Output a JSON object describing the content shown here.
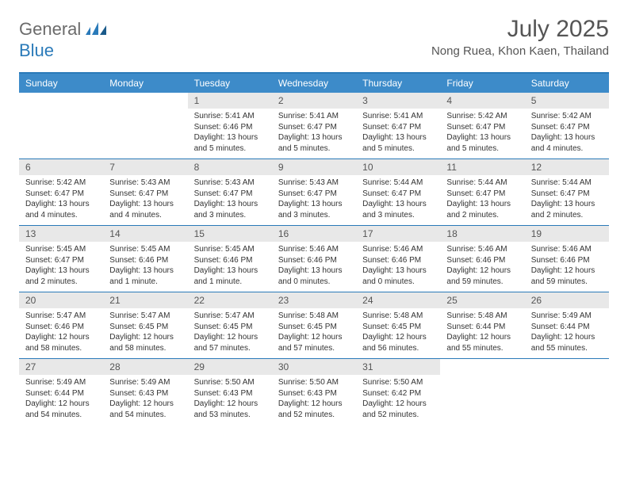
{
  "brand": {
    "text1": "General",
    "text2": "Blue",
    "logo_color": "#2a7ab9",
    "text_color": "#6b6b6b"
  },
  "title": "July 2025",
  "location": "Nong Ruea, Khon Kaen, Thailand",
  "colors": {
    "header_bg": "#3d8bc9",
    "border": "#2a7ab9",
    "daynum_bg": "#e8e8e8",
    "text": "#333333"
  },
  "daynames": [
    "Sunday",
    "Monday",
    "Tuesday",
    "Wednesday",
    "Thursday",
    "Friday",
    "Saturday"
  ],
  "weeks": [
    [
      null,
      null,
      {
        "n": "1",
        "sr": "5:41 AM",
        "ss": "6:46 PM",
        "dl": "13 hours and 5 minutes."
      },
      {
        "n": "2",
        "sr": "5:41 AM",
        "ss": "6:47 PM",
        "dl": "13 hours and 5 minutes."
      },
      {
        "n": "3",
        "sr": "5:41 AM",
        "ss": "6:47 PM",
        "dl": "13 hours and 5 minutes."
      },
      {
        "n": "4",
        "sr": "5:42 AM",
        "ss": "6:47 PM",
        "dl": "13 hours and 5 minutes."
      },
      {
        "n": "5",
        "sr": "5:42 AM",
        "ss": "6:47 PM",
        "dl": "13 hours and 4 minutes."
      }
    ],
    [
      {
        "n": "6",
        "sr": "5:42 AM",
        "ss": "6:47 PM",
        "dl": "13 hours and 4 minutes."
      },
      {
        "n": "7",
        "sr": "5:43 AM",
        "ss": "6:47 PM",
        "dl": "13 hours and 4 minutes."
      },
      {
        "n": "8",
        "sr": "5:43 AM",
        "ss": "6:47 PM",
        "dl": "13 hours and 3 minutes."
      },
      {
        "n": "9",
        "sr": "5:43 AM",
        "ss": "6:47 PM",
        "dl": "13 hours and 3 minutes."
      },
      {
        "n": "10",
        "sr": "5:44 AM",
        "ss": "6:47 PM",
        "dl": "13 hours and 3 minutes."
      },
      {
        "n": "11",
        "sr": "5:44 AM",
        "ss": "6:47 PM",
        "dl": "13 hours and 2 minutes."
      },
      {
        "n": "12",
        "sr": "5:44 AM",
        "ss": "6:47 PM",
        "dl": "13 hours and 2 minutes."
      }
    ],
    [
      {
        "n": "13",
        "sr": "5:45 AM",
        "ss": "6:47 PM",
        "dl": "13 hours and 2 minutes."
      },
      {
        "n": "14",
        "sr": "5:45 AM",
        "ss": "6:46 PM",
        "dl": "13 hours and 1 minute."
      },
      {
        "n": "15",
        "sr": "5:45 AM",
        "ss": "6:46 PM",
        "dl": "13 hours and 1 minute."
      },
      {
        "n": "16",
        "sr": "5:46 AM",
        "ss": "6:46 PM",
        "dl": "13 hours and 0 minutes."
      },
      {
        "n": "17",
        "sr": "5:46 AM",
        "ss": "6:46 PM",
        "dl": "13 hours and 0 minutes."
      },
      {
        "n": "18",
        "sr": "5:46 AM",
        "ss": "6:46 PM",
        "dl": "12 hours and 59 minutes."
      },
      {
        "n": "19",
        "sr": "5:46 AM",
        "ss": "6:46 PM",
        "dl": "12 hours and 59 minutes."
      }
    ],
    [
      {
        "n": "20",
        "sr": "5:47 AM",
        "ss": "6:46 PM",
        "dl": "12 hours and 58 minutes."
      },
      {
        "n": "21",
        "sr": "5:47 AM",
        "ss": "6:45 PM",
        "dl": "12 hours and 58 minutes."
      },
      {
        "n": "22",
        "sr": "5:47 AM",
        "ss": "6:45 PM",
        "dl": "12 hours and 57 minutes."
      },
      {
        "n": "23",
        "sr": "5:48 AM",
        "ss": "6:45 PM",
        "dl": "12 hours and 57 minutes."
      },
      {
        "n": "24",
        "sr": "5:48 AM",
        "ss": "6:45 PM",
        "dl": "12 hours and 56 minutes."
      },
      {
        "n": "25",
        "sr": "5:48 AM",
        "ss": "6:44 PM",
        "dl": "12 hours and 55 minutes."
      },
      {
        "n": "26",
        "sr": "5:49 AM",
        "ss": "6:44 PM",
        "dl": "12 hours and 55 minutes."
      }
    ],
    [
      {
        "n": "27",
        "sr": "5:49 AM",
        "ss": "6:44 PM",
        "dl": "12 hours and 54 minutes."
      },
      {
        "n": "28",
        "sr": "5:49 AM",
        "ss": "6:43 PM",
        "dl": "12 hours and 54 minutes."
      },
      {
        "n": "29",
        "sr": "5:50 AM",
        "ss": "6:43 PM",
        "dl": "12 hours and 53 minutes."
      },
      {
        "n": "30",
        "sr": "5:50 AM",
        "ss": "6:43 PM",
        "dl": "12 hours and 52 minutes."
      },
      {
        "n": "31",
        "sr": "5:50 AM",
        "ss": "6:42 PM",
        "dl": "12 hours and 52 minutes."
      },
      null,
      null
    ]
  ],
  "labels": {
    "sunrise": "Sunrise:",
    "sunset": "Sunset:",
    "daylight": "Daylight:"
  }
}
